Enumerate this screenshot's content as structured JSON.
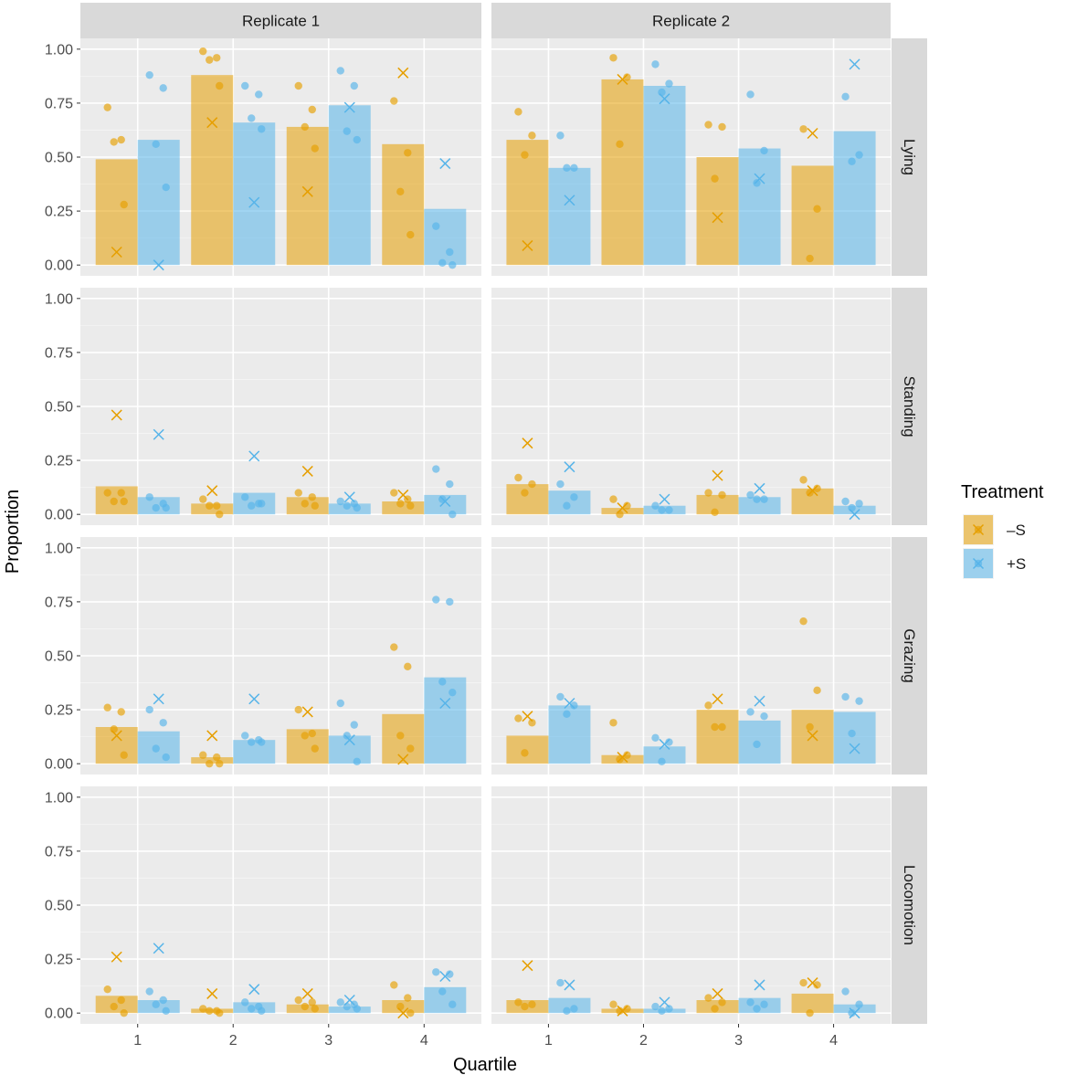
{
  "chart_data": {
    "type": "bar",
    "xlabel": "Quartile",
    "ylabel": "Proportion",
    "ylim": [
      0,
      1.05
    ],
    "y_ticks": [
      0.0,
      0.25,
      0.5,
      0.75,
      1.0
    ],
    "y_tick_labels": [
      "0.00",
      "0.25",
      "0.50",
      "0.75",
      "1.00"
    ],
    "categories": [
      "1",
      "2",
      "3",
      "4"
    ],
    "columns": [
      "Replicate  1",
      "Replicate  2"
    ],
    "rows": [
      "Lying",
      "Standing",
      "Grazing",
      "Locomotion"
    ],
    "grid": true,
    "legend": {
      "title": "Treatment",
      "position": "right",
      "entries": [
        {
          "label": "–S",
          "color": "#E69F00"
        },
        {
          "label": "+S",
          "color": "#56B4E9"
        }
      ]
    },
    "panels": [
      {
        "row": "Lying",
        "column": "Replicate  1",
        "series": [
          {
            "treatment": "–S",
            "bars": [
              0.49,
              0.88,
              0.64,
              0.56
            ],
            "points": [
              [
                0.73,
                0.58,
                0.57,
                0.28
              ],
              [
                0.99,
                0.96,
                0.95,
                0.83
              ],
              [
                0.83,
                0.72,
                0.64,
                0.54
              ],
              [
                0.76,
                0.52,
                0.34,
                0.14
              ]
            ],
            "crosses": [
              0.06,
              0.66,
              0.34,
              0.89
            ]
          },
          {
            "treatment": "+S",
            "bars": [
              0.58,
              0.66,
              0.74,
              0.26
            ],
            "points": [
              [
                0.88,
                0.82,
                0.56,
                0.36
              ],
              [
                0.83,
                0.79,
                0.68,
                0.63
              ],
              [
                0.9,
                0.83,
                0.62,
                0.58
              ],
              [
                0.18,
                0.06,
                0.01,
                0.0
              ]
            ],
            "crosses": [
              0.0,
              0.29,
              0.73,
              0.47
            ]
          }
        ]
      },
      {
        "row": "Lying",
        "column": "Replicate  2",
        "series": [
          {
            "treatment": "–S",
            "bars": [
              0.58,
              0.86,
              0.5,
              0.46
            ],
            "points": [
              [
                0.71,
                0.6,
                0.51
              ],
              [
                0.96,
                0.87,
                0.56
              ],
              [
                0.65,
                0.64,
                0.4
              ],
              [
                0.63,
                0.26,
                0.03
              ]
            ],
            "crosses": [
              0.09,
              0.86,
              0.22,
              0.61
            ]
          },
          {
            "treatment": "+S",
            "bars": [
              0.45,
              0.83,
              0.54,
              0.62
            ],
            "points": [
              [
                0.6,
                0.45,
                0.45
              ],
              [
                0.93,
                0.84,
                0.8
              ],
              [
                0.79,
                0.53,
                0.38
              ],
              [
                0.78,
                0.51,
                0.48
              ]
            ],
            "crosses": [
              0.3,
              0.77,
              0.4,
              0.93
            ]
          }
        ]
      },
      {
        "row": "Standing",
        "column": "Replicate  1",
        "series": [
          {
            "treatment": "–S",
            "bars": [
              0.13,
              0.05,
              0.08,
              0.06
            ],
            "points": [
              [
                0.1,
                0.1,
                0.06,
                0.06
              ],
              [
                0.07,
                0.04,
                0.04,
                0.0
              ],
              [
                0.1,
                0.08,
                0.05,
                0.04
              ],
              [
                0.1,
                0.07,
                0.05,
                0.04
              ]
            ],
            "crosses": [
              0.46,
              0.11,
              0.2,
              0.09
            ]
          },
          {
            "treatment": "+S",
            "bars": [
              0.08,
              0.1,
              0.05,
              0.09
            ],
            "points": [
              [
                0.08,
                0.05,
                0.03,
                0.03
              ],
              [
                0.08,
                0.05,
                0.04,
                0.05
              ],
              [
                0.06,
                0.05,
                0.04,
                0.03
              ],
              [
                0.21,
                0.14,
                0.07,
                0.0
              ]
            ],
            "crosses": [
              0.37,
              0.27,
              0.08,
              0.06
            ]
          }
        ]
      },
      {
        "row": "Standing",
        "column": "Replicate  2",
        "series": [
          {
            "treatment": "–S",
            "bars": [
              0.14,
              0.03,
              0.09,
              0.12
            ],
            "points": [
              [
                0.17,
                0.14,
                0.1
              ],
              [
                0.07,
                0.04,
                0.0
              ],
              [
                0.1,
                0.09,
                0.01
              ],
              [
                0.16,
                0.12,
                0.1
              ]
            ],
            "crosses": [
              0.33,
              0.03,
              0.18,
              0.11
            ]
          },
          {
            "treatment": "+S",
            "bars": [
              0.11,
              0.04,
              0.08,
              0.04
            ],
            "points": [
              [
                0.14,
                0.08,
                0.04
              ],
              [
                0.04,
                0.02,
                0.02
              ],
              [
                0.09,
                0.07,
                0.07
              ],
              [
                0.06,
                0.05,
                0.03
              ]
            ],
            "crosses": [
              0.22,
              0.07,
              0.12,
              0.0
            ]
          }
        ]
      },
      {
        "row": "Grazing",
        "column": "Replicate  1",
        "series": [
          {
            "treatment": "–S",
            "bars": [
              0.17,
              0.03,
              0.16,
              0.23
            ],
            "points": [
              [
                0.26,
                0.24,
                0.16,
                0.04
              ],
              [
                0.04,
                0.03,
                0.0,
                0.0
              ],
              [
                0.25,
                0.14,
                0.13,
                0.07
              ],
              [
                0.54,
                0.45,
                0.13,
                0.07
              ]
            ],
            "crosses": [
              0.13,
              0.13,
              0.24,
              0.02
            ]
          },
          {
            "treatment": "+S",
            "bars": [
              0.15,
              0.11,
              0.13,
              0.4
            ],
            "points": [
              [
                0.25,
                0.19,
                0.07,
                0.03
              ],
              [
                0.13,
                0.11,
                0.1,
                0.1
              ],
              [
                0.28,
                0.18,
                0.13,
                0.01
              ],
              [
                0.76,
                0.75,
                0.38,
                0.33
              ]
            ],
            "crosses": [
              0.3,
              0.3,
              0.11,
              0.28
            ]
          }
        ]
      },
      {
        "row": "Grazing",
        "column": "Replicate  2",
        "series": [
          {
            "treatment": "–S",
            "bars": [
              0.13,
              0.04,
              0.25,
              0.25
            ],
            "points": [
              [
                0.21,
                0.19,
                0.05
              ],
              [
                0.19,
                0.04,
                0.02
              ],
              [
                0.27,
                0.17,
                0.17
              ],
              [
                0.66,
                0.34,
                0.17
              ]
            ],
            "crosses": [
              0.22,
              0.03,
              0.3,
              0.13
            ]
          },
          {
            "treatment": "+S",
            "bars": [
              0.27,
              0.08,
              0.2,
              0.24
            ],
            "points": [
              [
                0.31,
                0.27,
                0.23
              ],
              [
                0.12,
                0.1,
                0.01
              ],
              [
                0.24,
                0.22,
                0.09
              ],
              [
                0.31,
                0.29,
                0.14
              ]
            ],
            "crosses": [
              0.28,
              0.09,
              0.29,
              0.07
            ]
          }
        ]
      },
      {
        "row": "Locomotion",
        "column": "Replicate  1",
        "series": [
          {
            "treatment": "–S",
            "bars": [
              0.08,
              0.02,
              0.04,
              0.06
            ],
            "points": [
              [
                0.11,
                0.06,
                0.03,
                0.0
              ],
              [
                0.02,
                0.01,
                0.01,
                0.0
              ],
              [
                0.06,
                0.05,
                0.03,
                0.02
              ],
              [
                0.13,
                0.07,
                0.03,
                0.0
              ]
            ],
            "crosses": [
              0.26,
              0.09,
              0.09,
              0.0
            ]
          },
          {
            "treatment": "+S",
            "bars": [
              0.06,
              0.05,
              0.03,
              0.12
            ],
            "points": [
              [
                0.1,
                0.06,
                0.04,
                0.01
              ],
              [
                0.05,
                0.03,
                0.02,
                0.01
              ],
              [
                0.05,
                0.04,
                0.03,
                0.02
              ],
              [
                0.19,
                0.18,
                0.1,
                0.04
              ]
            ],
            "crosses": [
              0.3,
              0.11,
              0.06,
              0.17
            ]
          }
        ]
      },
      {
        "row": "Locomotion",
        "column": "Replicate  2",
        "series": [
          {
            "treatment": "–S",
            "bars": [
              0.06,
              0.02,
              0.06,
              0.09
            ],
            "points": [
              [
                0.05,
                0.04,
                0.03
              ],
              [
                0.04,
                0.02,
                0.01
              ],
              [
                0.07,
                0.05,
                0.02
              ],
              [
                0.14,
                0.13,
                0.0
              ]
            ],
            "crosses": [
              0.22,
              0.01,
              0.09,
              0.14
            ]
          },
          {
            "treatment": "+S",
            "bars": [
              0.07,
              0.02,
              0.07,
              0.04
            ],
            "points": [
              [
                0.14,
                0.02,
                0.01
              ],
              [
                0.03,
                0.02,
                0.01
              ],
              [
                0.05,
                0.04,
                0.02
              ],
              [
                0.1,
                0.04,
                0.0
              ]
            ],
            "crosses": [
              0.13,
              0.05,
              0.13,
              0.0
            ]
          }
        ]
      }
    ]
  }
}
